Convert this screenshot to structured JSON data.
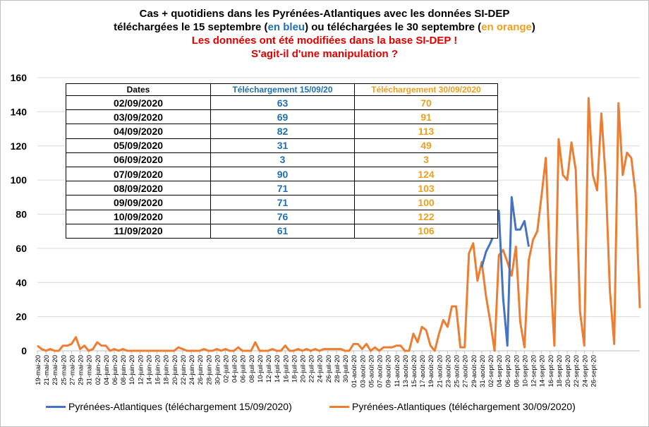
{
  "title": {
    "line1": "Cas + quotidiens dans les Pyrénées-Atlantiques avec les données SI-DEP",
    "line2_a": "téléchargées le 15 septembre (",
    "line2_blue": "en bleu",
    "line2_b": ") ou téléchargées le 30 septembre (",
    "line2_orange": "en orange",
    "line2_c": ")",
    "line3": "Les données ont été modifiées dans la base SI-DEP !",
    "line4": "S'agit-il d'une manipulation ?"
  },
  "colors": {
    "blue": "#4472c4",
    "orange": "#ed7d31",
    "table_blue": "#1f6fb5",
    "table_orange": "#f0a020",
    "red": "#e00000"
  },
  "table": {
    "headers": [
      "Dates",
      "Téléchargement 15/09/20",
      "Téléchargement 30/09/2020"
    ],
    "rows": [
      [
        "02/09/2020",
        "63",
        "70"
      ],
      [
        "03/09/2020",
        "69",
        "91"
      ],
      [
        "04/09/2020",
        "82",
        "113"
      ],
      [
        "05/09/2020",
        "31",
        "49"
      ],
      [
        "06/09/2020",
        "3",
        "3"
      ],
      [
        "07/09/2020",
        "90",
        "124"
      ],
      [
        "08/09/2020",
        "71",
        "103"
      ],
      [
        "09/09/2020",
        "71",
        "100"
      ],
      [
        "10/09/2020",
        "76",
        "122"
      ],
      [
        "11/09/2020",
        "61",
        "106"
      ]
    ]
  },
  "legend": [
    {
      "label": "Pyrénées-Atlantiques (téléchargement 15/09/2020)",
      "color": "#4472c4"
    },
    {
      "label": "Pyrénées-Atlantiques (téléchargement 30/09/2020)",
      "color": "#ed7d31"
    }
  ],
  "chart_data": {
    "type": "line",
    "ylim": [
      0,
      160
    ],
    "yticks": [
      0,
      20,
      40,
      60,
      80,
      100,
      120,
      140,
      160
    ],
    "grid": true,
    "legend_position": "bottom",
    "x_start": "19-mai-20",
    "x_end": "26-sept-20",
    "x_tick_labels": [
      "19-mai-20",
      "21-mai-20",
      "23-mai-20",
      "25-mai-20",
      "27-mai-20",
      "29-mai-20",
      "31-mai-20",
      "02-juin-20",
      "04-juin-20",
      "06-juin-20",
      "08-juin-20",
      "10-juin-20",
      "12-juin-20",
      "14-juin-20",
      "16-juin-20",
      "18-juin-20",
      "20-juin-20",
      "22-juin-20",
      "24-juin-20",
      "26-juin-20",
      "28-juin-20",
      "30-juin-20",
      "02-juil-20",
      "04-juil-20",
      "06-juil-20",
      "08-juil-20",
      "10-juil-20",
      "12-juil-20",
      "14-juil-20",
      "16-juil-20",
      "18-juil-20",
      "20-juil-20",
      "22-juil-20",
      "24-juil-20",
      "26-juil-20",
      "28-juil-20",
      "30-juil-20",
      "01-août-20",
      "03-août-20",
      "05-août-20",
      "07-août-20",
      "09-août-20",
      "11-août-20",
      "13-août-20",
      "15-août-20",
      "17-août-20",
      "19-août-20",
      "21-août-20",
      "23-août-20",
      "25-août-20",
      "27-août-20",
      "29-août-20",
      "31-août-20",
      "02-sept-20",
      "04-sept-20",
      "06-sept-20",
      "08-sept-20",
      "10-sept-20",
      "12-sept-20",
      "14-sept-20",
      "16-sept-20",
      "18-sept-20",
      "20-sept-20",
      "22-sept-20",
      "24-sept-20",
      "26-sept-20"
    ],
    "series": [
      {
        "name": "Pyrénées-Atlantiques (téléchargement 15/09/2020)",
        "color": "#4472c4",
        "x_start": "31-août-20",
        "values": [
          49,
          58,
          63,
          69,
          82,
          31,
          3,
          90,
          71,
          71,
          76,
          61
        ]
      },
      {
        "name": "Pyrénées-Atlantiques (téléchargement 30/09/2020)",
        "color": "#ed7d31",
        "x_start": "19-mai-20",
        "values": [
          3,
          1,
          0,
          1,
          0,
          0,
          3,
          3,
          4,
          8,
          1,
          3,
          0,
          1,
          5,
          3,
          3,
          0,
          1,
          0,
          1,
          0,
          0,
          0,
          0,
          0,
          0,
          0,
          0,
          0,
          0,
          0,
          0,
          2,
          1,
          0,
          0,
          0,
          0,
          1,
          0,
          0,
          1,
          0,
          1,
          0,
          0,
          2,
          0,
          0,
          0,
          5,
          0,
          0,
          0,
          1,
          0,
          0,
          3,
          0,
          0,
          1,
          0,
          1,
          0,
          1,
          0,
          1,
          1,
          1,
          1,
          1,
          0,
          0,
          4,
          4,
          1,
          4,
          0,
          2,
          0,
          2,
          2,
          2,
          3,
          3,
          0,
          0,
          10,
          5,
          14,
          12,
          3,
          0,
          10,
          18,
          14,
          26,
          26,
          2,
          2,
          57,
          63,
          41,
          52,
          32,
          17,
          0,
          56,
          59,
          52,
          44,
          61,
          17,
          2,
          53,
          65,
          70,
          91,
          113,
          49,
          3,
          124,
          103,
          100,
          122,
          106,
          23,
          3,
          148,
          103,
          94,
          139,
          101,
          35,
          4,
          145,
          103,
          116,
          113,
          92,
          25
        ]
      }
    ]
  }
}
